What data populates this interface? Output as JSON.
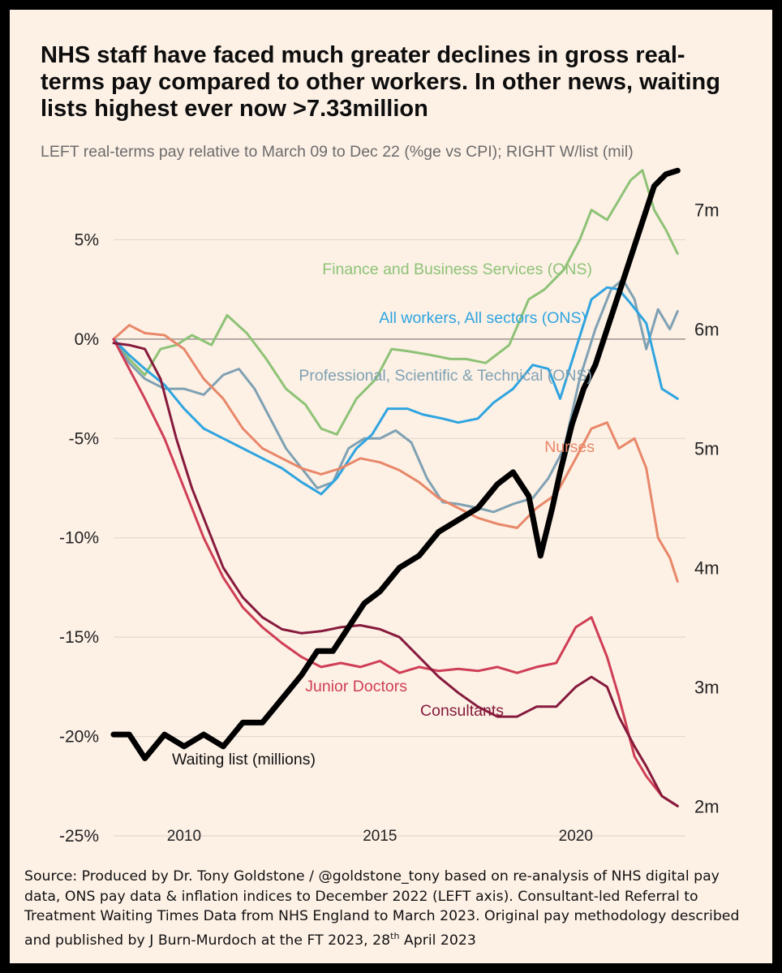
{
  "title": "NHS staff have faced much greater declines in gross real-terms pay compared to other workers. In other news, waiting lists highest ever now >7.33million",
  "subtitle": "LEFT real-terms pay relative to March 09 to Dec 22 (%ge vs CPI); RIGHT W/list (mil)",
  "source": {
    "text": "Source: Produced by Dr. Tony Goldstone / @goldstone_tony based on re-analysis of NHS digital pay data, ONS pay data & inflation indices to December 2022 (LEFT axis). Consultant-led Referral to Treatment Waiting Times Data from NHS England to March 2023.  Original pay methodology described and published by J Burn-Murdoch at the FT 2023, 28",
    "sup": "th",
    "tail": " April 2023"
  },
  "chart_data": {
    "type": "line",
    "x_axis": {
      "min": 2008.2,
      "max": 2022.8,
      "ticks": [
        2010,
        2015,
        2020
      ],
      "tick_labels": [
        "2010",
        "2015",
        "2020"
      ]
    },
    "y_left": {
      "min": -25,
      "max": 8,
      "ticks": [
        5,
        0,
        -5,
        -10,
        -15,
        -20,
        -25
      ],
      "tick_labels": [
        "5%",
        "0%",
        "-5%",
        "-10%",
        "-15%",
        "-20%",
        "-25%"
      ]
    },
    "y_right": {
      "ticks": [
        7,
        6,
        5,
        4,
        3,
        2
      ],
      "tick_labels": [
        "7m",
        "6m",
        "5m",
        "4m",
        "3m",
        "2m"
      ],
      "scale": {
        "value_a": 2,
        "left_equiv_a": -23.5,
        "value_b": 7,
        "left_equiv_b": 6.5
      }
    },
    "grid": "horizontal",
    "series": [
      {
        "name": "Finance and Business Services (ONS)",
        "axis": "left",
        "color": "#8ec276",
        "x": [
          2008.2,
          2008.6,
          2009.0,
          2009.4,
          2009.8,
          2010.2,
          2010.7,
          2011.1,
          2011.6,
          2012.1,
          2012.6,
          2013.1,
          2013.5,
          2013.9,
          2014.4,
          2014.9,
          2015.3,
          2015.7,
          2016.3,
          2016.8,
          2017.2,
          2017.7,
          2018.3,
          2018.8,
          2019.2,
          2019.7,
          2020.1,
          2020.4,
          2020.8,
          2021.1,
          2021.4,
          2021.7,
          2022.0,
          2022.3,
          2022.6
        ],
        "y": [
          0.0,
          -1.0,
          -1.8,
          -0.5,
          -0.3,
          0.2,
          -0.3,
          1.2,
          0.3,
          -1.0,
          -2.5,
          -3.3,
          -4.5,
          -4.8,
          -3.0,
          -2.0,
          -0.5,
          -0.6,
          -0.8,
          -1.0,
          -1.0,
          -1.2,
          -0.3,
          2.0,
          2.5,
          3.5,
          5.0,
          6.5,
          6.0,
          7.0,
          8.0,
          8.5,
          6.5,
          5.5,
          4.3
        ]
      },
      {
        "name": "All workers, All sectors (ONS)",
        "axis": "left",
        "color": "#2fa4df",
        "x": [
          2008.2,
          2008.6,
          2009.0,
          2009.5,
          2010.0,
          2010.5,
          2011.0,
          2011.5,
          2012.0,
          2012.5,
          2013.0,
          2013.5,
          2013.9,
          2014.4,
          2014.8,
          2015.2,
          2015.7,
          2016.1,
          2016.6,
          2017.0,
          2017.5,
          2017.9,
          2018.4,
          2018.9,
          2019.3,
          2019.6,
          2020.0,
          2020.4,
          2020.8,
          2021.1,
          2021.4,
          2021.8,
          2022.2,
          2022.6
        ],
        "y": [
          0.0,
          -0.8,
          -1.5,
          -2.3,
          -3.5,
          -4.5,
          -5.0,
          -5.5,
          -6.0,
          -6.5,
          -7.2,
          -7.8,
          -7.0,
          -5.5,
          -4.8,
          -3.5,
          -3.5,
          -3.8,
          -4.0,
          -4.2,
          -4.0,
          -3.2,
          -2.5,
          -1.3,
          -1.5,
          -3.0,
          -0.5,
          2.0,
          2.6,
          2.5,
          1.8,
          0.8,
          -2.5,
          -3.0
        ]
      },
      {
        "name": "Professional, Scientific & Technical (ONS)",
        "axis": "left",
        "color": "#7fa1b3",
        "x": [
          2008.2,
          2008.6,
          2009.0,
          2009.5,
          2010.0,
          2010.5,
          2011.0,
          2011.4,
          2011.8,
          2012.2,
          2012.6,
          2013.0,
          2013.4,
          2013.8,
          2014.2,
          2014.6,
          2015.0,
          2015.4,
          2015.8,
          2016.2,
          2016.6,
          2017.0,
          2017.5,
          2017.9,
          2018.4,
          2018.9,
          2019.3,
          2019.7,
          2020.1,
          2020.5,
          2020.9,
          2021.2,
          2021.5,
          2021.8,
          2022.1,
          2022.4,
          2022.6
        ],
        "y": [
          0.0,
          -1.2,
          -2.0,
          -2.5,
          -2.5,
          -2.8,
          -1.8,
          -1.5,
          -2.5,
          -4.0,
          -5.5,
          -6.5,
          -7.5,
          -7.2,
          -5.5,
          -5.0,
          -5.0,
          -4.6,
          -5.2,
          -7.0,
          -8.2,
          -8.3,
          -8.5,
          -8.7,
          -8.3,
          -8.0,
          -7.0,
          -5.5,
          -2.0,
          0.5,
          2.5,
          3.0,
          2.0,
          -0.5,
          1.5,
          0.5,
          1.4
        ]
      },
      {
        "name": "Nurses",
        "axis": "left",
        "color": "#e88769",
        "x": [
          2008.2,
          2008.6,
          2009.0,
          2009.5,
          2010.0,
          2010.5,
          2011.0,
          2011.5,
          2012.0,
          2012.5,
          2013.0,
          2013.5,
          2014.0,
          2014.5,
          2015.0,
          2015.5,
          2016.0,
          2016.5,
          2017.0,
          2017.5,
          2018.0,
          2018.5,
          2019.0,
          2019.5,
          2020.0,
          2020.4,
          2020.8,
          2021.1,
          2021.5,
          2021.8,
          2022.1,
          2022.4,
          2022.6
        ],
        "y": [
          0.0,
          0.7,
          0.3,
          0.2,
          -0.5,
          -2.0,
          -3.0,
          -4.5,
          -5.5,
          -6.0,
          -6.5,
          -6.8,
          -6.5,
          -6.0,
          -6.2,
          -6.6,
          -7.2,
          -8.0,
          -8.5,
          -9.0,
          -9.3,
          -9.5,
          -8.5,
          -7.8,
          -6.0,
          -4.5,
          -4.2,
          -5.5,
          -5.0,
          -6.5,
          -10.0,
          -11.0,
          -12.2
        ]
      },
      {
        "name": "Junior Doctors",
        "axis": "left",
        "color": "#cf3e55",
        "x": [
          2008.2,
          2008.6,
          2009.0,
          2009.5,
          2010.0,
          2010.5,
          2011.0,
          2011.5,
          2012.0,
          2012.5,
          2013.0,
          2013.5,
          2014.0,
          2014.5,
          2015.0,
          2015.5,
          2016.0,
          2016.5,
          2017.0,
          2017.5,
          2018.0,
          2018.5,
          2019.0,
          2019.5,
          2020.0,
          2020.4,
          2020.8,
          2021.1,
          2021.5,
          2021.8,
          2022.2,
          2022.6
        ],
        "y": [
          0.0,
          -1.5,
          -3.0,
          -5.0,
          -7.5,
          -10.0,
          -12.0,
          -13.5,
          -14.5,
          -15.3,
          -16.0,
          -16.5,
          -16.3,
          -16.5,
          -16.2,
          -16.8,
          -16.5,
          -16.7,
          -16.6,
          -16.7,
          -16.5,
          -16.8,
          -16.5,
          -16.3,
          -14.5,
          -14.0,
          -16.0,
          -18.0,
          -21.0,
          -22.0,
          -23.0,
          -23.5
        ]
      },
      {
        "name": "Consultants",
        "axis": "left",
        "color": "#861a3c",
        "x": [
          2008.2,
          2008.6,
          2009.0,
          2009.4,
          2009.8,
          2010.2,
          2010.6,
          2011.0,
          2011.5,
          2012.0,
          2012.5,
          2013.0,
          2013.5,
          2014.0,
          2014.5,
          2015.0,
          2015.5,
          2016.0,
          2016.5,
          2017.0,
          2017.5,
          2018.0,
          2018.5,
          2019.0,
          2019.5,
          2020.0,
          2020.4,
          2020.8,
          2021.1,
          2021.5,
          2021.8,
          2022.2,
          2022.6
        ],
        "y": [
          -0.2,
          -0.3,
          -0.5,
          -2.0,
          -5.0,
          -7.5,
          -9.5,
          -11.5,
          -13.0,
          -14.0,
          -14.6,
          -14.8,
          -14.7,
          -14.5,
          -14.4,
          -14.6,
          -15.0,
          -16.0,
          -17.0,
          -17.8,
          -18.5,
          -19.0,
          -19.0,
          -18.5,
          -18.5,
          -17.5,
          -17.0,
          -17.5,
          -19.0,
          -20.5,
          -21.5,
          -23.0,
          -23.5
        ]
      },
      {
        "name": "Waiting list (millions)",
        "axis": "right",
        "color": "#000000",
        "x": [
          2008.2,
          2008.6,
          2009.0,
          2009.5,
          2010.0,
          2010.5,
          2011.0,
          2011.5,
          2012.0,
          2012.5,
          2013.0,
          2013.4,
          2013.8,
          2014.2,
          2014.6,
          2015.0,
          2015.5,
          2016.0,
          2016.5,
          2017.0,
          2017.5,
          2018.0,
          2018.4,
          2018.8,
          2019.1,
          2019.4,
          2019.6,
          2019.9,
          2020.2,
          2020.5,
          2020.8,
          2021.1,
          2021.4,
          2021.7,
          2022.0,
          2022.3,
          2022.6
        ],
        "y": [
          2.6,
          2.6,
          2.4,
          2.6,
          2.5,
          2.6,
          2.5,
          2.7,
          2.7,
          2.9,
          3.1,
          3.3,
          3.3,
          3.5,
          3.7,
          3.8,
          4.0,
          4.1,
          4.3,
          4.4,
          4.5,
          4.7,
          4.8,
          4.6,
          4.1,
          4.5,
          4.8,
          5.2,
          5.5,
          5.7,
          6.0,
          6.3,
          6.6,
          6.9,
          7.2,
          7.3,
          7.33
        ]
      }
    ],
    "annotations": [
      {
        "series": 0,
        "text": "Finance and Business Services (ONS)",
        "color": "#8ec276"
      },
      {
        "series": 1,
        "text": "All workers, All sectors (ONS)",
        "color": "#2fa4df"
      },
      {
        "series": 2,
        "text": "Professional, Scientific & Technical (ONS)",
        "color": "#7fa1b3"
      },
      {
        "series": 3,
        "text": "Nurses",
        "color": "#e88769"
      },
      {
        "series": 4,
        "text": "Junior Doctors",
        "color": "#cf3e55"
      },
      {
        "series": 5,
        "text": "Consultants",
        "color": "#861a3c"
      },
      {
        "series": 6,
        "text": "Waiting list (millions)",
        "color": "#111111"
      }
    ]
  }
}
